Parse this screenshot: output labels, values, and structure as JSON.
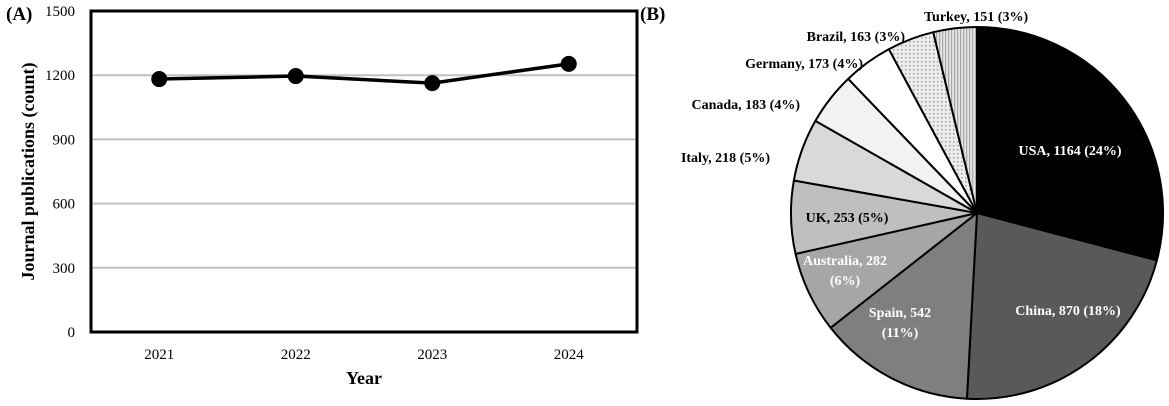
{
  "panels": {
    "a_label": "(A)",
    "b_label": "(B)"
  },
  "chart_data": [
    {
      "type": "line",
      "xlabel": "Year",
      "ylabel": "Journal publications (count)",
      "categories": [
        "2021",
        "2022",
        "2023",
        "2024"
      ],
      "series": [
        {
          "values": [
            1182,
            1196,
            1163,
            1253
          ]
        }
      ],
      "ylim": [
        0,
        1500
      ],
      "yticks": [
        "0",
        "300",
        "600",
        "900",
        "1200",
        "1500"
      ],
      "grid": true,
      "colors": {
        "line": "#000000",
        "grid": "#c0c0c0"
      }
    },
    {
      "type": "pie",
      "slices": [
        {
          "name": "USA",
          "value": 1164,
          "label_lines": [
            "USA, 1164 (24%)"
          ],
          "color": "#000000",
          "text_color": "#ffffff"
        },
        {
          "name": "China",
          "value": 870,
          "label_lines": [
            "China, 870 (18%)"
          ],
          "color": "#595959",
          "text_color": "#ffffff"
        },
        {
          "name": "Spain",
          "value": 542,
          "label_lines": [
            "Spain, 542",
            "(11%)"
          ],
          "color": "#7f7f7f",
          "text_color": "#ffffff"
        },
        {
          "name": "Australia",
          "value": 282,
          "label_lines": [
            "Australia, 282",
            "(6%)"
          ],
          "color": "#a6a6a6",
          "text_color": "#ffffff"
        },
        {
          "name": "UK",
          "value": 253,
          "label_lines": [
            "UK, 253 (5%)"
          ],
          "color": "#bfbfbf",
          "text_color": "#000000"
        },
        {
          "name": "Italy",
          "value": 218,
          "label_lines": [
            "Italy, 218 (5%)"
          ],
          "color": "#d9d9d9",
          "text_color": "#000000"
        },
        {
          "name": "Canada",
          "value": 183,
          "label_lines": [
            "Canada, 183 (4%)"
          ],
          "color": "#f2f2f2",
          "text_color": "#000000"
        },
        {
          "name": "Germany",
          "value": 173,
          "label_lines": [
            "Germany, 173 (4%)"
          ],
          "color": "#ffffff",
          "text_color": "#000000"
        },
        {
          "name": "Brazil",
          "value": 163,
          "label_lines": [
            "Brazil, 163 (3%)"
          ],
          "color": "#e6e6e6",
          "text_color": "#000000",
          "pattern": "dots"
        },
        {
          "name": "Turkey",
          "value": 151,
          "label_lines": [
            "Turkey, 151 (3%)"
          ],
          "color": "#d9d9d9",
          "text_color": "#000000",
          "pattern": "lines"
        }
      ]
    }
  ]
}
